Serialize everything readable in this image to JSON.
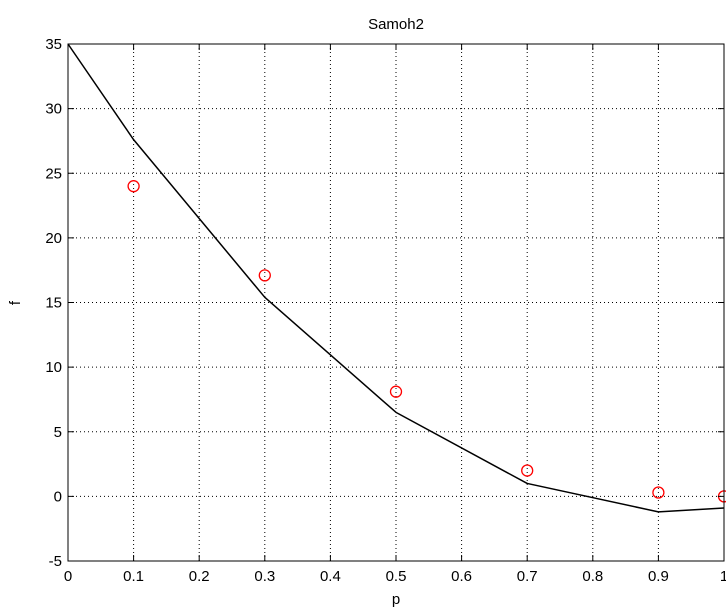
{
  "chart_data": {
    "type": "line",
    "title": "Samoh2",
    "xlabel": "p",
    "ylabel": "f",
    "xlim": [
      0,
      1
    ],
    "ylim": [
      -5,
      35
    ],
    "x_ticks": [
      0,
      0.1,
      0.2,
      0.3,
      0.4,
      0.5,
      0.6,
      0.7,
      0.8,
      0.9,
      1
    ],
    "x_tick_labels": [
      "0",
      "0.1",
      "0.2",
      "0.3",
      "0.4",
      "0.5",
      "0.6",
      "0.7",
      "0.8",
      "0.9",
      "1"
    ],
    "y_ticks": [
      -5,
      0,
      5,
      10,
      15,
      20,
      25,
      30,
      35
    ],
    "y_tick_labels": [
      "-5",
      "0",
      "5",
      "10",
      "15",
      "20",
      "25",
      "30",
      "35"
    ],
    "grid": true,
    "series": [
      {
        "style": "line",
        "color": "#000000",
        "x": [
          0,
          0.1,
          0.3,
          0.5,
          0.7,
          0.9,
          1.0
        ],
        "y": [
          35,
          27.6,
          15.4,
          6.5,
          1.0,
          -1.2,
          -0.9
        ]
      },
      {
        "style": "markers",
        "marker": "circle",
        "color": "#ff0000",
        "x": [
          0.1,
          0.3,
          0.5,
          0.7,
          0.9,
          1.0
        ],
        "y": [
          24,
          17.1,
          8.1,
          2.0,
          0.3,
          0.0
        ]
      }
    ]
  }
}
